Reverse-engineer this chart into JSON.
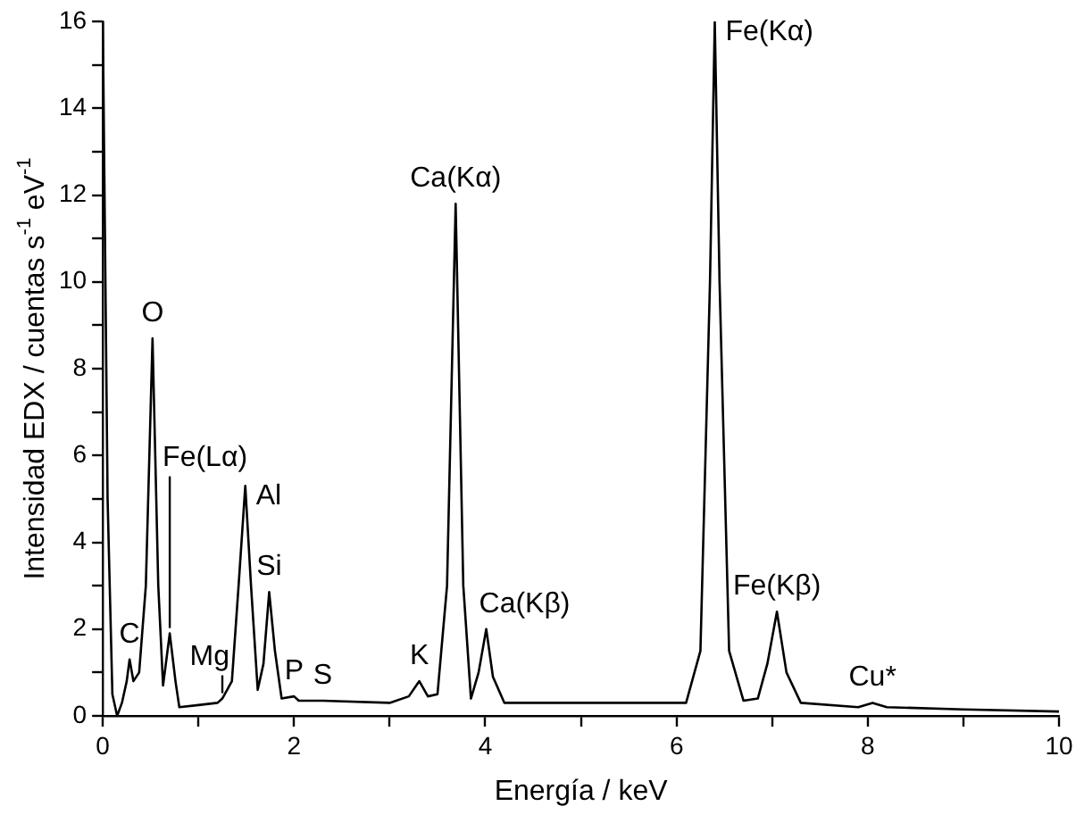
{
  "chart_data": {
    "type": "line",
    "xlabel": "Energía / keV",
    "ylabel": "Intensidad EDX / cuentas s$^{-1}$ eV$^{-1}$",
    "xlim": [
      0,
      10
    ],
    "ylim": [
      0,
      16
    ],
    "xticks": [
      0,
      {
        "value": 1,
        "label": null
      },
      2,
      {
        "value": 3,
        "label": null
      },
      4,
      {
        "value": 5,
        "label": null
      },
      6,
      {
        "value": 7,
        "label": null
      },
      8,
      {
        "value": 9,
        "label": null
      },
      10
    ],
    "yticks": [
      0,
      {
        "value": 1,
        "label": null
      },
      2,
      {
        "value": 3,
        "label": null
      },
      4,
      {
        "value": 5,
        "label": null
      },
      6,
      {
        "value": 7,
        "label": null
      },
      8,
      {
        "value": 9,
        "label": null
      },
      10,
      {
        "value": 11,
        "label": null
      },
      12,
      {
        "value": 13,
        "label": null
      },
      14,
      {
        "value": 15,
        "label": null
      },
      16
    ],
    "grid": false,
    "legend": false,
    "marker": "none",
    "line_style": "solid",
    "series": [
      {
        "color": "#000000",
        "x": [
          0,
          0.05,
          0.1,
          0.15,
          0.2,
          0.25,
          0.28,
          0.32,
          0.38,
          0.45,
          0.52,
          0.58,
          0.63,
          0.7,
          0.76,
          0.8,
          1.0,
          1.2,
          1.25,
          1.35,
          1.42,
          1.49,
          1.55,
          1.62,
          1.68,
          1.74,
          1.8,
          1.87,
          2.0,
          2.05,
          2.3,
          3.0,
          3.2,
          3.31,
          3.4,
          3.5,
          3.6,
          3.69,
          3.77,
          3.85,
          3.93,
          4.01,
          4.08,
          4.2,
          5.0,
          6.1,
          6.25,
          6.35,
          6.4,
          6.45,
          6.55,
          6.7,
          6.85,
          6.95,
          7.05,
          7.15,
          7.3,
          7.9,
          8.05,
          8.2,
          9.0,
          10.0
        ],
        "values": [
          16,
          5,
          0.5,
          0,
          0.3,
          0.8,
          1.3,
          0.8,
          1.0,
          3,
          8.7,
          3,
          0.7,
          1.9,
          0.8,
          0.2,
          0.25,
          0.3,
          0.4,
          0.8,
          3,
          5.3,
          3,
          0.6,
          1.2,
          2.85,
          1.5,
          0.4,
          0.45,
          0.35,
          0.35,
          0.3,
          0.45,
          0.8,
          0.45,
          0.5,
          3,
          11.8,
          3,
          0.4,
          1,
          2,
          0.9,
          0.3,
          0.3,
          0.3,
          1.5,
          10,
          16,
          10,
          1.5,
          0.35,
          0.4,
          1.2,
          2.4,
          1.0,
          0.3,
          0.2,
          0.3,
          0.2,
          0.15,
          0.1
        ]
      }
    ],
    "annotations": [
      {
        "text": "C",
        "x": 0.28,
        "y": 1.3
      },
      {
        "text": "O",
        "x": 0.52,
        "y": 8.7
      },
      {
        "text": "Fe(Lα)",
        "x": 0.7,
        "y": 1.9
      },
      {
        "text": "Mg",
        "x": 1.25,
        "y": 0.4
      },
      {
        "text": "Al",
        "x": 1.49,
        "y": 5.3
      },
      {
        "text": "Si",
        "x": 1.74,
        "y": 2.85
      },
      {
        "text": "P",
        "x": 2.0,
        "y": 0.45
      },
      {
        "text": "S",
        "x": 2.3,
        "y": 0.35
      },
      {
        "text": "K",
        "x": 3.31,
        "y": 0.8
      },
      {
        "text": "Ca(Kα)",
        "x": 3.69,
        "y": 11.8
      },
      {
        "text": "Ca(Kβ)",
        "x": 4.01,
        "y": 2.0
      },
      {
        "text": "Fe(Kα)",
        "x": 6.4,
        "y": 16
      },
      {
        "text": "Fe(Kβ)",
        "x": 7.05,
        "y": 2.4
      },
      {
        "text": "Cu*",
        "x": 8.05,
        "y": 0.3
      }
    ]
  }
}
